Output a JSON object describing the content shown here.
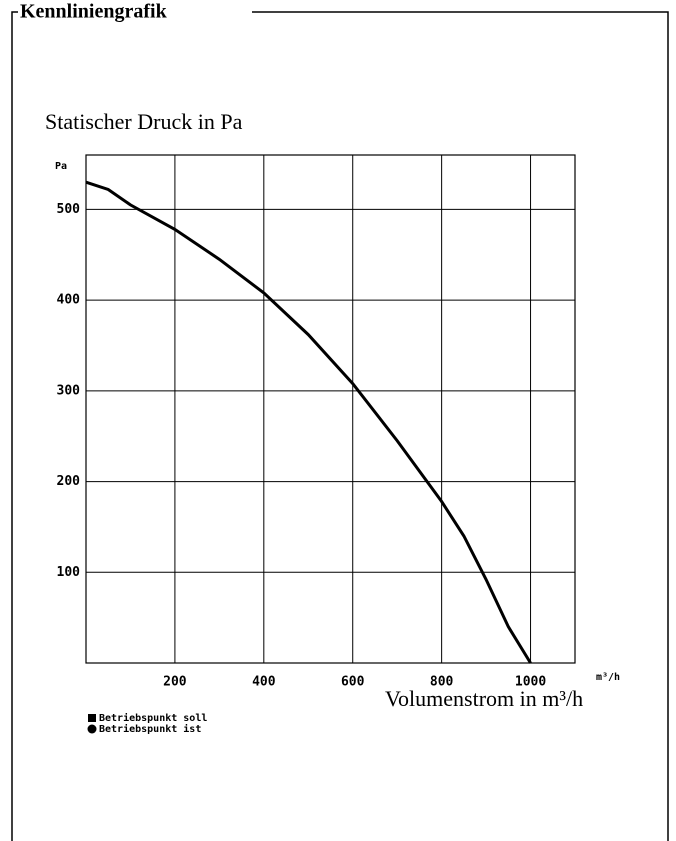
{
  "frame_title": "Kennliniengrafik",
  "chart_data": {
    "type": "line",
    "title": "Statischer Druck in Pa",
    "y_unit": "Pa",
    "x_unit": "m³/h",
    "x_label": "Volumenstrom in m³/h",
    "x": [
      0,
      50,
      100,
      200,
      300,
      400,
      500,
      600,
      700,
      800,
      850,
      900,
      950,
      1000
    ],
    "values": [
      530,
      522,
      505,
      478,
      445,
      408,
      362,
      308,
      245,
      178,
      140,
      92,
      40,
      0
    ],
    "color": "#000000",
    "xlim": [
      0,
      1100
    ],
    "ylim": [
      0,
      560
    ],
    "xticks": [
      200,
      400,
      600,
      800,
      1000
    ],
    "yticks": [
      100,
      200,
      300,
      400,
      500
    ],
    "grid": true,
    "legend_items": [
      "Betriebspunkt soll",
      "Betriebspunkt ist"
    ]
  }
}
